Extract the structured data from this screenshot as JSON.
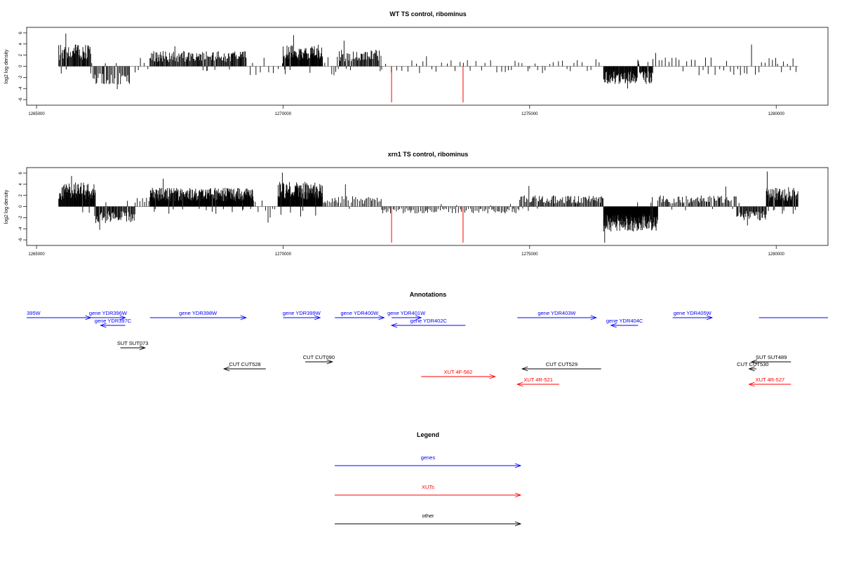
{
  "colors": {
    "gene": "#0000ff",
    "xut": "#ff0000",
    "other": "#000000",
    "trace": "#000000",
    "highlight": "#ff0000"
  },
  "chart_data": [
    {
      "type": "bar",
      "title": "WT TS control, ribominus",
      "ylabel": "log2 log density",
      "xlim": [
        1264800,
        1281050
      ],
      "ylim": [
        -7,
        7
      ],
      "xticks": [
        1265000,
        1270000,
        1275000,
        1280000
      ],
      "yticks": [
        -6,
        -4,
        -2,
        0,
        2,
        4,
        6
      ],
      "density_segments": [
        {
          "from": 1265450,
          "to": 1266100,
          "amp": 3.2,
          "step": 12,
          "peak": 5.9
        },
        {
          "from": 1266100,
          "to": 1266900,
          "amp": -2.6,
          "step": 22,
          "peak": -4.1
        },
        {
          "from": 1267000,
          "to": 1267300,
          "amp": 0.8,
          "step": 60,
          "peak": 1.5
        },
        {
          "from": 1267300,
          "to": 1269250,
          "amp": 2.2,
          "step": 14,
          "peak": 3.6
        },
        {
          "from": 1269250,
          "to": 1270000,
          "amp": 0.9,
          "step": 70,
          "peak": 1.6
        },
        {
          "from": 1270000,
          "to": 1270800,
          "amp": 3.1,
          "step": 9,
          "peak": 5.6
        },
        {
          "from": 1270800,
          "to": 1271100,
          "amp": -0.9,
          "step": 60,
          "peak": -1.6
        },
        {
          "from": 1271100,
          "to": 1272000,
          "amp": 2.4,
          "step": 16,
          "peak": 4.6
        },
        {
          "from": 1272000,
          "to": 1275000,
          "amp": -0.6,
          "step": 90,
          "peak": 1.8
        },
        {
          "from": 1275000,
          "to": 1276500,
          "amp": 0.7,
          "step": 80,
          "peak": 1.7
        },
        {
          "from": 1276500,
          "to": 1277500,
          "amp": -2.6,
          "step": 10,
          "peak": -4.0
        },
        {
          "from": 1277500,
          "to": 1279500,
          "amp": 0.9,
          "step": 70,
          "peak": 2.4
        },
        {
          "from": 1279500,
          "to": 1280450,
          "amp": 0.9,
          "step": 60,
          "peak": 3.9
        }
      ],
      "highlight_bars": [
        {
          "x": 1272200,
          "y": -6.5
        },
        {
          "x": 1273650,
          "y": -6.5
        }
      ]
    },
    {
      "type": "bar",
      "title": "xrn1 TS control, ribominus",
      "ylabel": "log2 log density",
      "xlim": [
        1264800,
        1281050
      ],
      "ylim": [
        -7,
        7
      ],
      "xticks": [
        1265000,
        1270000,
        1275000,
        1280000
      ],
      "yticks": [
        -6,
        -4,
        -2,
        0,
        2,
        4,
        6
      ],
      "density_segments": [
        {
          "from": 1265450,
          "to": 1266200,
          "amp": 3.5,
          "step": 9,
          "peak": 5.5
        },
        {
          "from": 1266200,
          "to": 1267000,
          "amp": -2.4,
          "step": 14,
          "peak": -4.2
        },
        {
          "from": 1267000,
          "to": 1267300,
          "amp": 1.4,
          "step": 40,
          "peak": 2.6
        },
        {
          "from": 1267300,
          "to": 1269400,
          "amp": 2.7,
          "step": 7,
          "peak": 5.0
        },
        {
          "from": 1269400,
          "to": 1269900,
          "amp": -1.2,
          "step": 60,
          "peak": -2.9
        },
        {
          "from": 1269900,
          "to": 1270800,
          "amp": 3.6,
          "step": 7,
          "peak": 6.1
        },
        {
          "from": 1270800,
          "to": 1272000,
          "amp": 1.5,
          "step": 30,
          "peak": 4.0
        },
        {
          "from": 1272000,
          "to": 1274800,
          "amp": -1.0,
          "step": 30,
          "peak": -2.6
        },
        {
          "from": 1274800,
          "to": 1276500,
          "amp": 1.6,
          "step": 18,
          "peak": 3.7
        },
        {
          "from": 1276500,
          "to": 1277600,
          "amp": -3.6,
          "step": 6,
          "peak": -6.5
        },
        {
          "from": 1277600,
          "to": 1279200,
          "amp": 1.6,
          "step": 22,
          "peak": 3.6
        },
        {
          "from": 1279200,
          "to": 1279800,
          "amp": -2.0,
          "step": 14,
          "peak": -3.4
        },
        {
          "from": 1279800,
          "to": 1280450,
          "amp": 2.8,
          "step": 9,
          "peak": 6.3
        }
      ],
      "highlight_bars": [
        {
          "x": 1272200,
          "y": -6.5
        },
        {
          "x": 1273650,
          "y": -6.5
        }
      ]
    }
  ],
  "annotations": {
    "title": "Annotations",
    "items": [
      {
        "label": "395W",
        "kind": "gene",
        "dir": "+",
        "row": 0,
        "from": 1264800,
        "to": 1266100
      },
      {
        "label": "gene YDR396W",
        "kind": "gene",
        "dir": "+",
        "row": 0,
        "from": 1266100,
        "to": 1266800
      },
      {
        "label": "gene YDR397C",
        "kind": "gene",
        "dir": "-",
        "row": 1,
        "from": 1266300,
        "to": 1266800
      },
      {
        "label": "gene YDR398W",
        "kind": "gene",
        "dir": "+",
        "row": 0,
        "from": 1267300,
        "to": 1269250
      },
      {
        "label": "gene YDR399W",
        "kind": "gene",
        "dir": "+",
        "row": 0,
        "from": 1270000,
        "to": 1270750
      },
      {
        "label": "gene YDR400W",
        "kind": "gene",
        "dir": "+",
        "row": 0,
        "from": 1271050,
        "to": 1272050
      },
      {
        "label": "gene YDR401W",
        "kind": "gene",
        "dir": "+",
        "row": 0,
        "from": 1272200,
        "to": 1272800
      },
      {
        "label": "gene YDR402C",
        "kind": "gene",
        "dir": "-",
        "row": 1,
        "from": 1272200,
        "to": 1273700
      },
      {
        "label": "gene YDR403W",
        "kind": "gene",
        "dir": "+",
        "row": 0,
        "from": 1274750,
        "to": 1276350
      },
      {
        "label": "gene YDR404C",
        "kind": "gene",
        "dir": "-",
        "row": 1,
        "from": 1276650,
        "to": 1277200
      },
      {
        "label": "gene YDR405W",
        "kind": "gene",
        "dir": "+",
        "row": 0,
        "from": 1277900,
        "to": 1278700
      },
      {
        "label": "",
        "kind": "gene",
        "dir": "none",
        "row": 0,
        "from": 1279650,
        "to": 1281050
      },
      {
        "label": "SUT SUT073",
        "kind": "other",
        "dir": "+",
        "row": 3,
        "from": 1266700,
        "to": 1267200
      },
      {
        "label": "CUT CUT528",
        "kind": "other",
        "dir": "-",
        "row": 5,
        "from": 1268800,
        "to": 1269650
      },
      {
        "label": "CUT CUT090",
        "kind": "other",
        "dir": "+",
        "row": 4,
        "from": 1270450,
        "to": 1271000
      },
      {
        "label": "CUT CUT529",
        "kind": "other",
        "dir": "-",
        "row": 5,
        "from": 1274850,
        "to": 1276450
      },
      {
        "label": "SUT SUT489",
        "kind": "other",
        "dir": "-",
        "row": 4,
        "from": 1279500,
        "to": 1280300
      },
      {
        "label": "CUT CUT530",
        "kind": "other",
        "dir": "-",
        "row": 5,
        "from": 1279450,
        "to": 1279600
      },
      {
        "label": "XUT 4F-582",
        "kind": "xut",
        "dir": "+",
        "row": 6,
        "from": 1272800,
        "to": 1274300
      },
      {
        "label": "XUT 4R-521",
        "kind": "xut",
        "dir": "-",
        "row": 7,
        "from": 1274750,
        "to": 1275600
      },
      {
        "label": "XUT 4R-527",
        "kind": "xut",
        "dir": "-",
        "row": 7,
        "from": 1279450,
        "to": 1280300
      }
    ]
  },
  "legend": {
    "title": "Legend",
    "items": [
      {
        "label": "genes",
        "kind": "gene"
      },
      {
        "label": "XUTs",
        "kind": "xut"
      },
      {
        "label": "other",
        "kind": "other"
      }
    ]
  }
}
